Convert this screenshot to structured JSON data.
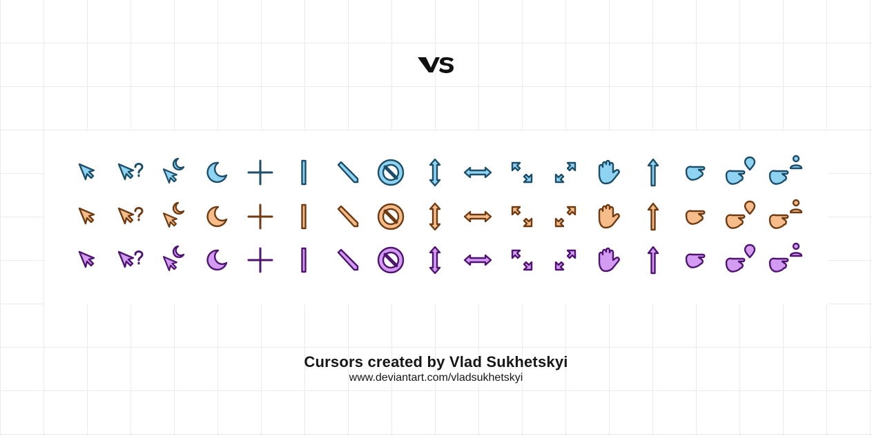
{
  "logo": {
    "text": "VS",
    "icon": "vs-logo-icon"
  },
  "cursor_rows": [
    {
      "name": "blue",
      "fill": "#8fd3f2",
      "stroke": "#1c4e69"
    },
    {
      "name": "orange",
      "fill": "#f6bd8a",
      "stroke": "#6e3a12"
    },
    {
      "name": "purple",
      "fill": "#d49bf2",
      "stroke": "#4e1470"
    }
  ],
  "cursor_types": [
    "arrow-cursor-icon",
    "help-cursor-icon",
    "working-cursor-icon",
    "busy-cursor-icon",
    "crosshair-cursor-icon",
    "text-cursor-icon",
    "pen-cursor-icon",
    "unavailable-cursor-icon",
    "vertical-resize-cursor-icon",
    "horizontal-resize-cursor-icon",
    "diagonal-resize-1-cursor-icon",
    "diagonal-resize-2-cursor-icon",
    "move-cursor-icon",
    "alternate-cursor-icon",
    "link-cursor-icon",
    "location-cursor-icon",
    "person-cursor-icon"
  ],
  "credit": {
    "title": "Cursors created by Vlad Sukhetskyi",
    "url": "www.deviantart.com/vladsukhetskyi"
  }
}
